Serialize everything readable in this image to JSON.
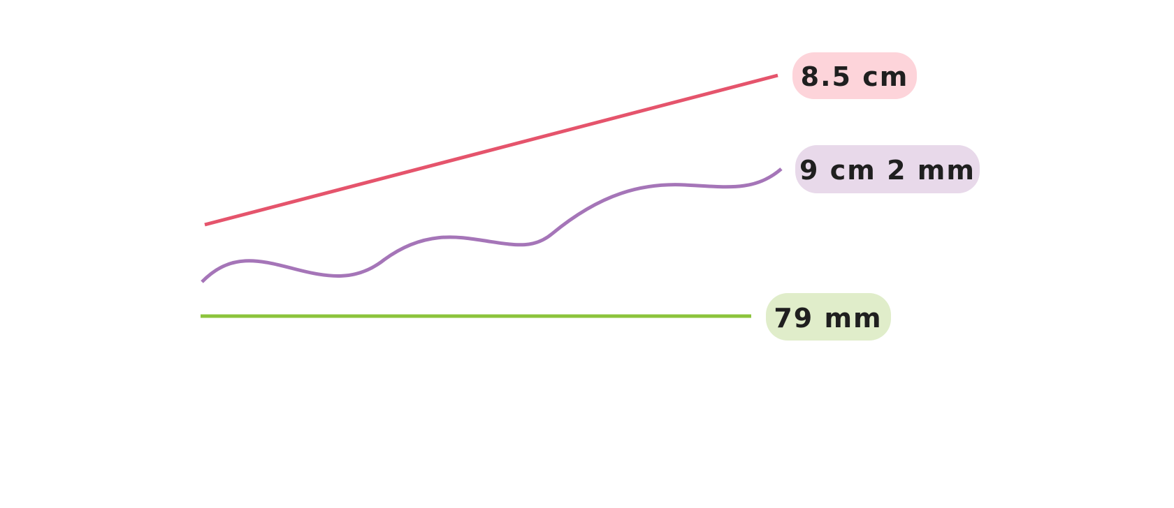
{
  "lines": [
    {
      "name": "straight-slanted",
      "label": "8.5 cm",
      "color": "#e5546c",
      "label_bg": "#fdd4da"
    },
    {
      "name": "wavy",
      "label": "9 cm 2 mm",
      "color": "#a575b8",
      "label_bg": "#e8d9ea"
    },
    {
      "name": "straight-horizontal",
      "label": "79 mm",
      "color": "#8cc43c",
      "label_bg": "#e0edca"
    }
  ]
}
